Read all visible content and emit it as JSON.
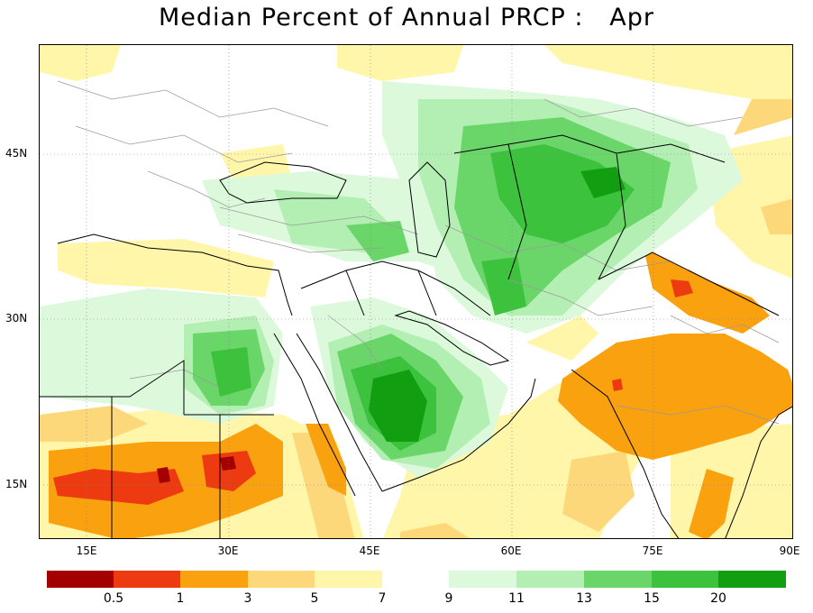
{
  "title": "Median Percent of Annual PRCP :   Apr",
  "axes": {
    "x_ticks": [
      "15E",
      "30E",
      "45E",
      "60E",
      "75E",
      "90E"
    ],
    "y_ticks": [
      "45N",
      "30N",
      "15N"
    ]
  },
  "colors": {
    "dark_red": "#a40000",
    "red": "#ee3a10",
    "orange": "#f9a10e",
    "light_orange": "#fdd87a",
    "pale_yellow": "#fff6aa",
    "white": "#ffffff",
    "pale_green": "#dcf9dc",
    "light_green": "#b3eeb3",
    "green": "#6ad66a",
    "mid_green": "#3cc23c",
    "dark_green": "#119e11",
    "country_border": "#000000",
    "province_border": "#9a9a9a"
  },
  "colorbar": {
    "left_labels": [
      "0.5",
      "1",
      "3",
      "5",
      "7"
    ],
    "right_labels": [
      "9",
      "11",
      "13",
      "15",
      "20"
    ]
  }
}
